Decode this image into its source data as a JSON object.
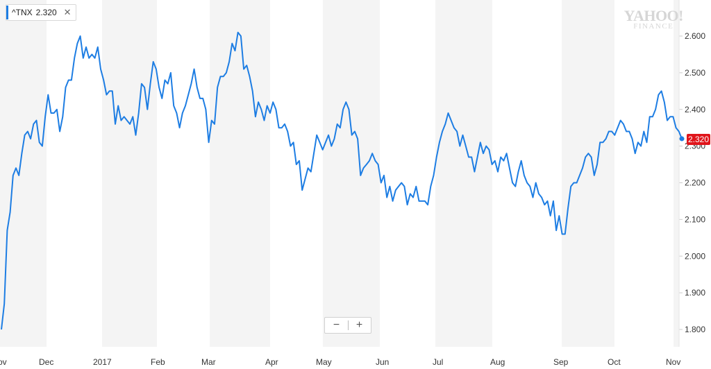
{
  "legend": {
    "symbol": "^TNX",
    "value": "2.320",
    "close": "✕"
  },
  "watermark": {
    "brand": "YAHOO!",
    "sub": "FINANCE"
  },
  "zoom": {
    "minus": "−",
    "plus": "+"
  },
  "last_value_badge": "2.320",
  "colors": {
    "line": "#1d7de3",
    "badge": "#e0151b",
    "band": "#f4f4f4"
  },
  "chart_data": {
    "type": "line",
    "series": [
      {
        "name": "^TNX",
        "values": [
          1.8,
          1.87,
          2.07,
          2.12,
          2.22,
          2.24,
          2.22,
          2.28,
          2.33,
          2.34,
          2.32,
          2.36,
          2.37,
          2.31,
          2.3,
          2.38,
          2.44,
          2.39,
          2.39,
          2.4,
          2.34,
          2.38,
          2.46,
          2.48,
          2.48,
          2.54,
          2.58,
          2.6,
          2.54,
          2.57,
          2.54,
          2.55,
          2.54,
          2.57,
          2.51,
          2.48,
          2.44,
          2.45,
          2.45,
          2.36,
          2.41,
          2.37,
          2.38,
          2.37,
          2.36,
          2.38,
          2.33,
          2.39,
          2.47,
          2.46,
          2.4,
          2.47,
          2.53,
          2.51,
          2.46,
          2.43,
          2.48,
          2.47,
          2.5,
          2.41,
          2.39,
          2.35,
          2.39,
          2.41,
          2.44,
          2.47,
          2.51,
          2.46,
          2.43,
          2.43,
          2.4,
          2.31,
          2.37,
          2.36,
          2.46,
          2.49,
          2.49,
          2.5,
          2.53,
          2.58,
          2.56,
          2.61,
          2.6,
          2.51,
          2.52,
          2.49,
          2.45,
          2.38,
          2.42,
          2.4,
          2.37,
          2.41,
          2.39,
          2.42,
          2.4,
          2.35,
          2.35,
          2.36,
          2.34,
          2.3,
          2.31,
          2.25,
          2.26,
          2.18,
          2.21,
          2.24,
          2.23,
          2.28,
          2.33,
          2.31,
          2.29,
          2.31,
          2.33,
          2.3,
          2.32,
          2.36,
          2.35,
          2.4,
          2.42,
          2.4,
          2.33,
          2.34,
          2.32,
          2.22,
          2.24,
          2.25,
          2.26,
          2.28,
          2.26,
          2.25,
          2.2,
          2.22,
          2.16,
          2.19,
          2.15,
          2.18,
          2.19,
          2.2,
          2.19,
          2.14,
          2.17,
          2.16,
          2.19,
          2.15,
          2.15,
          2.15,
          2.14,
          2.19,
          2.22,
          2.27,
          2.31,
          2.34,
          2.36,
          2.39,
          2.37,
          2.35,
          2.34,
          2.3,
          2.33,
          2.3,
          2.27,
          2.27,
          2.23,
          2.27,
          2.31,
          2.28,
          2.3,
          2.29,
          2.25,
          2.26,
          2.23,
          2.27,
          2.26,
          2.28,
          2.24,
          2.2,
          2.19,
          2.23,
          2.26,
          2.22,
          2.2,
          2.19,
          2.16,
          2.2,
          2.17,
          2.16,
          2.14,
          2.15,
          2.11,
          2.15,
          2.07,
          2.11,
          2.06,
          2.06,
          2.13,
          2.19,
          2.2,
          2.2,
          2.22,
          2.24,
          2.27,
          2.28,
          2.27,
          2.22,
          2.25,
          2.31,
          2.31,
          2.32,
          2.34,
          2.34,
          2.33,
          2.35,
          2.37,
          2.36,
          2.34,
          2.34,
          2.32,
          2.28,
          2.31,
          2.3,
          2.34,
          2.31,
          2.38,
          2.38,
          2.4,
          2.44,
          2.45,
          2.42,
          2.37,
          2.38,
          2.38,
          2.35,
          2.34,
          2.32
        ]
      }
    ],
    "x_labels": [
      "ov",
      "Dec",
      "2017",
      "Feb",
      "Mar",
      "Apr",
      "May",
      "Jun",
      "Jul",
      "Aug",
      "Sep",
      "Oct",
      "Nov"
    ],
    "y_ticks": [
      "1.800",
      "1.900",
      "2.000",
      "2.100",
      "2.200",
      "2.300",
      "2.400",
      "2.500",
      "2.600"
    ],
    "ylim": [
      1.77,
      2.67
    ],
    "grid": "alternating vertical month bands",
    "last_value": 2.32
  }
}
